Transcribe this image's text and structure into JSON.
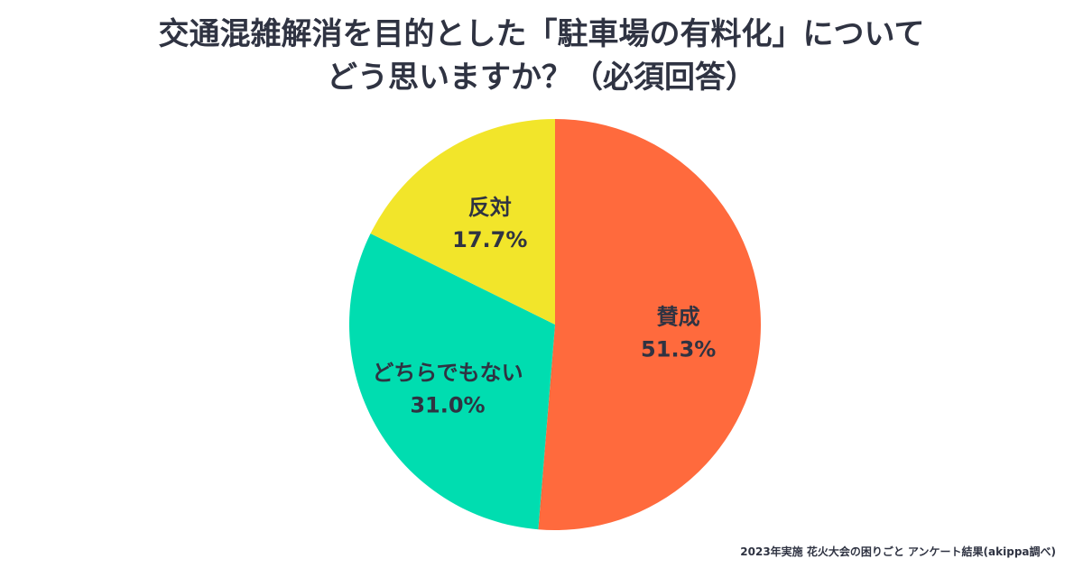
{
  "title": {
    "line1": "交通混雑解消を目的とした「駐車場の有料化」について",
    "line2": "どう思いますか？（必須回答）"
  },
  "footer": "2023年実施 花火大会の困りごと アンケート結果(akippa調べ)",
  "chart_data": {
    "type": "pie",
    "title": "交通混雑解消を目的とした「駐車場の有料化」について どう思いますか？（必須回答）",
    "unit": "%",
    "slices": [
      {
        "label": "賛成",
        "value": 51.3,
        "display": "51.3%",
        "color": "#ff6a3d"
      },
      {
        "label": "どちらでもない",
        "value": 31.0,
        "display": "31.0%",
        "color": "#00ddb0"
      },
      {
        "label": "反対",
        "value": 17.7,
        "display": "17.7%",
        "color": "#f2e52a"
      }
    ],
    "start_angle_deg": 0,
    "direction": "clockwise"
  }
}
